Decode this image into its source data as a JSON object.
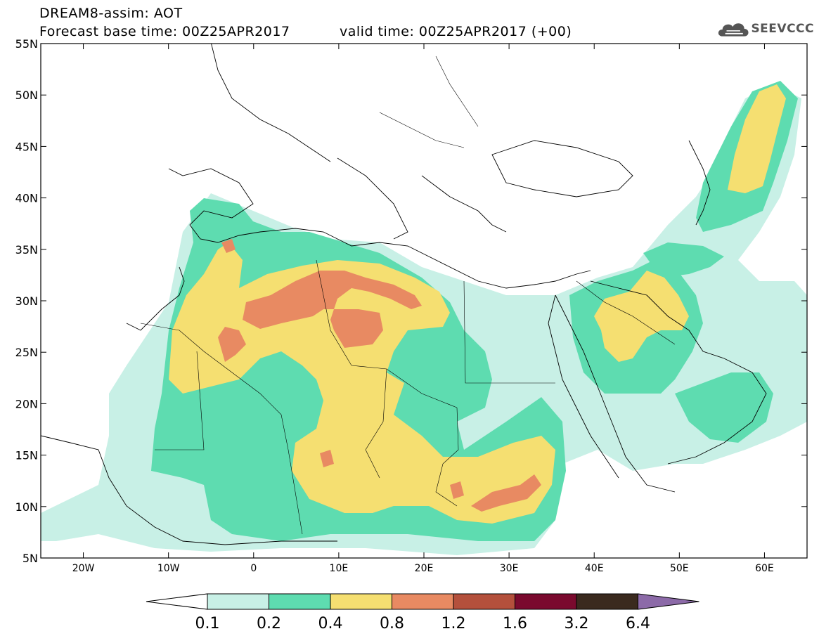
{
  "title": {
    "line1": "DREAM8-assim: AOT",
    "line2": "Forecast base time: 00Z25APR2017",
    "valid": "valid time: 00Z25APR2017 (+00)"
  },
  "logo": {
    "text": "SEEVCCC",
    "icon": "cloud-logo-icon"
  },
  "axes": {
    "lon_ticks": [
      "20W",
      "10W",
      "0",
      "10E",
      "20E",
      "30E",
      "40E",
      "50E",
      "60E"
    ],
    "lat_ticks": [
      "5N",
      "10N",
      "15N",
      "20N",
      "25N",
      "30N",
      "35N",
      "40N",
      "45N",
      "50N",
      "55N"
    ],
    "lon_range": [
      -25,
      65
    ],
    "lat_range": [
      5,
      55
    ]
  },
  "colorbar": {
    "levels": [
      "0.1",
      "0.2",
      "0.4",
      "0.8",
      "1.2",
      "1.6",
      "3.2",
      "6.4"
    ],
    "colors": [
      "#ffffff",
      "#c8f0e6",
      "#5edcb0",
      "#f5df71",
      "#e88a62",
      "#b4503c",
      "#7a0a2e",
      "#3a2a1e",
      "#8c6aa8"
    ]
  }
}
